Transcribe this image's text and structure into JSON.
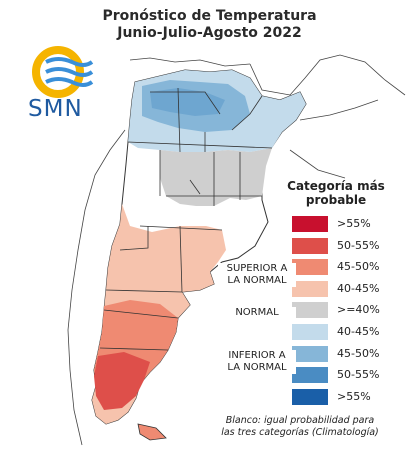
{
  "title_line1": "Pronóstico de Temperatura",
  "title_line2": "Junio-Julio-Agosto 2022",
  "logo_text": "SMN",
  "legend": {
    "title_line1": "Categoría más",
    "title_line2": "probable",
    "items": [
      {
        "label": ">55%",
        "color": "#c8102e"
      },
      {
        "label": "50-55%",
        "color": "#de4f4a"
      },
      {
        "label": "45-50%",
        "color": "#ef8a72"
      },
      {
        "label": "40-45%",
        "color": "#f6c3ad"
      },
      {
        "label": ">=40%",
        "color": "#cfcfcf"
      },
      {
        "label": "40-45%",
        "color": "#c3dbeb"
      },
      {
        "label": "45-50%",
        "color": "#86b6d8"
      },
      {
        "label": "50-55%",
        "color": "#4a8cc3"
      },
      {
        "label": ">55%",
        "color": "#1a5fa8"
      }
    ],
    "groups": {
      "superior_line1": "SUPERIOR A",
      "superior_line2": "LA NORMAL",
      "normal": "NORMAL",
      "inferior_line1": "INFERIOR A",
      "inferior_line2": "LA NORMAL"
    }
  },
  "footnote_line1": "Blanco: igual probabilidad para",
  "footnote_line2": "las tres categorías (Climatología)"
}
